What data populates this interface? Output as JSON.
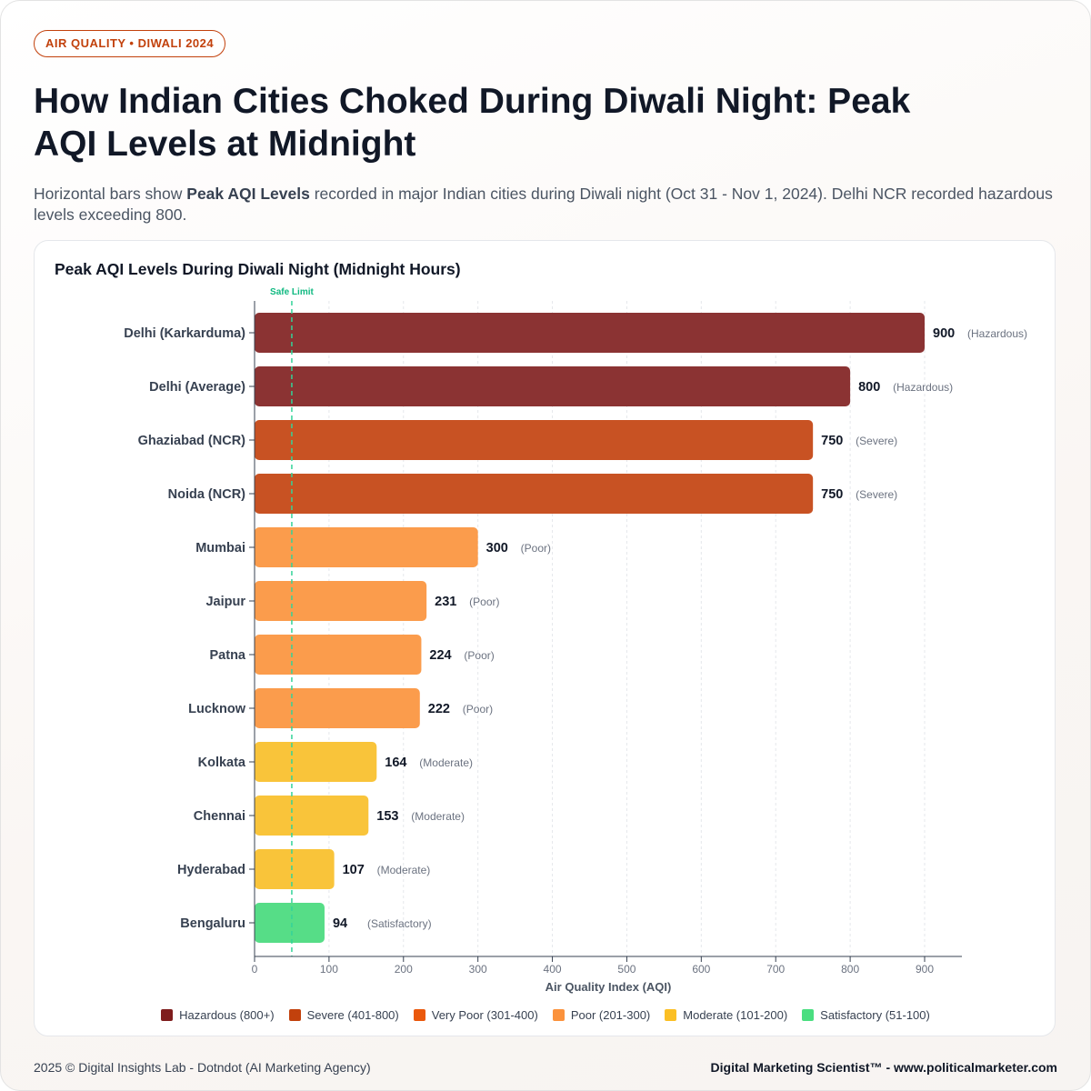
{
  "header": {
    "tag": "AIR QUALITY • DIWALI 2024",
    "title": "How Indian Cities Choked During Diwali Night: Peak AQI Levels at Midnight",
    "subtitle_pre": "Horizontal bars show ",
    "subtitle_bold": "Peak AQI Levels",
    "subtitle_post": " recorded in major Indian cities during Diwali night (Oct 31 - Nov 1, 2024). Delhi NCR recorded hazardous levels exceeding 800."
  },
  "chart_data": {
    "type": "bar",
    "orientation": "horizontal",
    "title": "Peak AQI Levels During Diwali Night (Midnight Hours)",
    "xlabel": "Air Quality Index (AQI)",
    "ylabel": "",
    "xlim": [
      0,
      950
    ],
    "xticks": [
      0,
      100,
      200,
      300,
      400,
      500,
      600,
      700,
      800,
      900
    ],
    "grid": true,
    "reference_line": {
      "value": 50,
      "label": "Safe Limit",
      "color": "#34d399"
    },
    "categories": [
      "Delhi (Karkarduma)",
      "Delhi (Average)",
      "Ghaziabad (NCR)",
      "Noida (NCR)",
      "Mumbai",
      "Jaipur",
      "Patna",
      "Lucknow",
      "Kolkata",
      "Chennai",
      "Hyderabad",
      "Bengaluru"
    ],
    "values": [
      900,
      800,
      750,
      750,
      300,
      231,
      224,
      222,
      164,
      153,
      107,
      94
    ],
    "status": [
      "(Hazardous)",
      "(Hazardous)",
      "(Severe)",
      "(Severe)",
      "(Poor)",
      "(Poor)",
      "(Poor)",
      "(Poor)",
      "(Moderate)",
      "(Moderate)",
      "(Moderate)",
      "(Satisfactory)"
    ],
    "bar_colors": [
      "#8b3333",
      "#8b3333",
      "#c85223",
      "#c85223",
      "#fb9c4c",
      "#fb9c4c",
      "#fb9c4c",
      "#fb9c4c",
      "#f9c43a",
      "#f9c43a",
      "#f9c43a",
      "#56dd87"
    ],
    "legend_position": "bottom-center",
    "legend": [
      {
        "label": "Hazardous (800+)",
        "color": "#7f1d1d"
      },
      {
        "label": "Severe (401-800)",
        "color": "#c2410c"
      },
      {
        "label": "Very Poor (301-400)",
        "color": "#ea580c"
      },
      {
        "label": "Poor (201-300)",
        "color": "#fb923c"
      },
      {
        "label": "Moderate (101-200)",
        "color": "#fbbf24"
      },
      {
        "label": "Satisfactory (51-100)",
        "color": "#4ade80"
      }
    ]
  },
  "footer": {
    "left": "2025 © Digital Insights Lab - Dotndot (AI Marketing Agency)",
    "right": "Digital Marketing Scientist™ - www.politicalmarketer.com"
  }
}
